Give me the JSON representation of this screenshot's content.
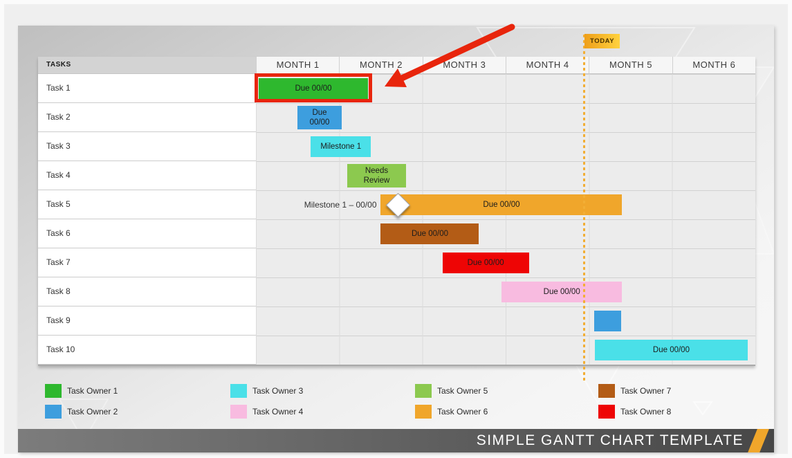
{
  "header": {
    "tasks_label": "TASKS"
  },
  "today": {
    "label": "TODAY",
    "line_color": "#f2ae35",
    "badge_gradient": [
      "#ee9f1a",
      "#ffd23e"
    ]
  },
  "chart_data": {
    "type": "gantt",
    "unit": "months",
    "months": [
      "MONTH 1",
      "MONTH 2",
      "MONTH 3",
      "MONTH 4",
      "MONTH 5",
      "MONTH 6"
    ],
    "axis_range_months": [
      0,
      6
    ],
    "today_position_months": 3.93,
    "tasks": [
      {
        "name": "Task 1",
        "bar": {
          "start": 0.03,
          "end": 1.35,
          "label": "Due 00/00",
          "owner": "Task Owner 1",
          "color": "#2eb82e",
          "highlighted": true
        }
      },
      {
        "name": "Task 2",
        "bar": {
          "start": 0.5,
          "end": 1.03,
          "label": "Due\n00/00",
          "owner": "Task Owner 2",
          "color": "#3d9ede"
        }
      },
      {
        "name": "Task 3",
        "bar": {
          "start": 0.66,
          "end": 1.38,
          "label": "Milestone 1",
          "owner": "Task Owner 3",
          "color": "#4ae0e8"
        }
      },
      {
        "name": "Task 4",
        "bar": {
          "start": 1.1,
          "end": 1.8,
          "label": "Needs\nReview",
          "owner": "Task Owner 5",
          "color": "#8cc94f"
        }
      },
      {
        "name": "Task 5",
        "bar": {
          "start": 1.5,
          "end": 4.4,
          "label": "Due 00/00",
          "owner": "Task Owner 6",
          "color": "#f0a62b"
        },
        "milestone": {
          "label": "Milestone 1 – 00/00",
          "position": 1.7
        }
      },
      {
        "name": "Task 6",
        "bar": {
          "start": 1.5,
          "end": 2.68,
          "label": "Due 00/00",
          "owner": "Task Owner 7",
          "color": "#b35c16"
        }
      },
      {
        "name": "Task 7",
        "bar": {
          "start": 2.24,
          "end": 3.28,
          "label": "Due 00/00",
          "owner": "Task Owner 8",
          "color": "#ee0505"
        }
      },
      {
        "name": "Task 8",
        "bar": {
          "start": 2.95,
          "end": 4.4,
          "label": "Due 00/00",
          "owner": "Task Owner 4",
          "color": "#f8bbe0"
        }
      },
      {
        "name": "Task 9",
        "bar": {
          "start": 4.06,
          "end": 4.39,
          "label": "",
          "owner": "Task Owner 2",
          "color": "#3d9ede"
        }
      },
      {
        "name": "Task 10",
        "bar": {
          "start": 4.07,
          "end": 5.91,
          "label": "Due 00/00",
          "owner": "Task Owner 3",
          "color": "#4ae0e8"
        }
      }
    ]
  },
  "legend": [
    {
      "label": "Task Owner 1",
      "color": "#2eb82e"
    },
    {
      "label": "Task Owner 2",
      "color": "#3d9ede"
    },
    {
      "label": "Task Owner 3",
      "color": "#4ae0e8"
    },
    {
      "label": "Task Owner 4",
      "color": "#f8bbe0"
    },
    {
      "label": "Task Owner 5",
      "color": "#8cc94f"
    },
    {
      "label": "Task Owner 6",
      "color": "#f0a62b"
    },
    {
      "label": "Task Owner 7",
      "color": "#b35c16"
    },
    {
      "label": "Task Owner 8",
      "color": "#ee0505"
    }
  ],
  "annotation": {
    "arrow_color": "#e8250c",
    "highlight_color": "#e8250c"
  },
  "footer": {
    "title": "SIMPLE GANTT CHART TEMPLATE",
    "accent_color": "#f0a62b"
  }
}
